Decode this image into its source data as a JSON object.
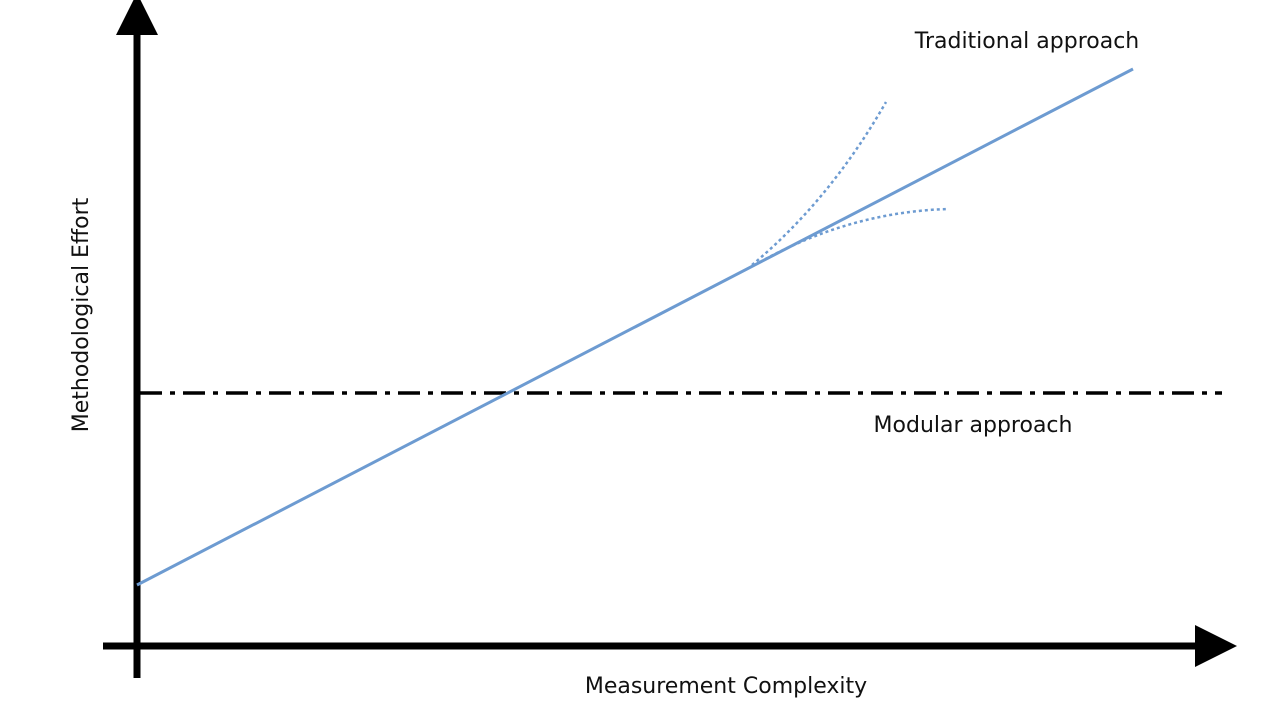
{
  "axes": {
    "x_label": "Measurement Complexity",
    "y_label": "Methodological Effort"
  },
  "lines": [
    {
      "label": "Traditional approach"
    },
    {
      "label": "Modular approach"
    }
  ]
}
